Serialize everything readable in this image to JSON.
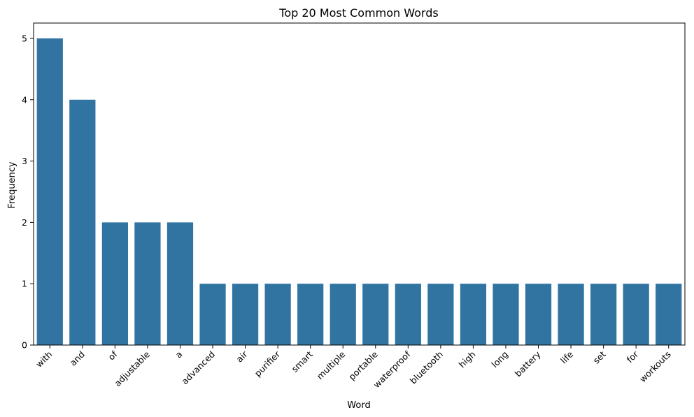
{
  "chart_data": {
    "type": "bar",
    "title": "Top 20 Most Common Words",
    "xlabel": "Word",
    "ylabel": "Frequency",
    "categories": [
      "with",
      "and",
      "of",
      "adjustable",
      "a",
      "advanced",
      "air",
      "purifier",
      "smart",
      "multiple",
      "portable",
      "waterproof",
      "bluetooth",
      "high",
      "long",
      "battery",
      "life",
      "set",
      "for",
      "workouts"
    ],
    "values": [
      5,
      4,
      2,
      2,
      2,
      1,
      1,
      1,
      1,
      1,
      1,
      1,
      1,
      1,
      1,
      1,
      1,
      1,
      1,
      1
    ],
    "ylim": [
      0,
      5.25
    ],
    "yticks": [
      0,
      1,
      2,
      3,
      4,
      5
    ],
    "grid": false,
    "bar_color": "#3274a1"
  }
}
